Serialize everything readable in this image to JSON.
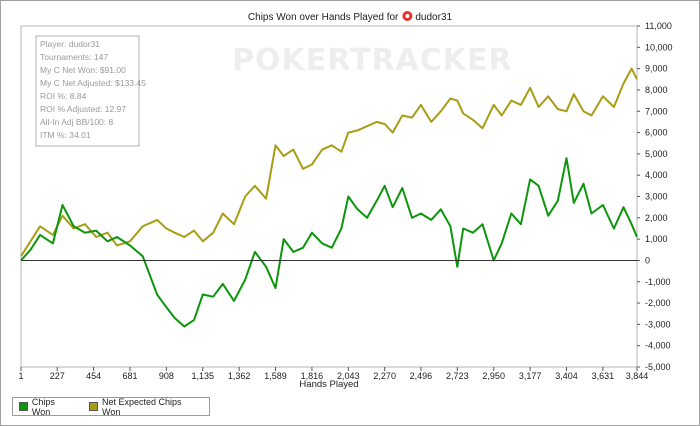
{
  "colors": {
    "chips_won": "#0c960c",
    "net_expected": "#a89d14",
    "zero_line": "#333333",
    "grid_border": "#b4b4b4",
    "app_icon": "#e8322b"
  },
  "chart_data": {
    "type": "line",
    "title": "Chips Won over Hands Played for",
    "player_name": "dudor31",
    "title_icon": "poker-chip-icon",
    "watermark": "POKERTRACKER",
    "xlabel": "Hands Played",
    "ylabel": "",
    "xlim": [
      1,
      3844
    ],
    "ylim": [
      -5000,
      11000
    ],
    "x_ticks": [
      "1",
      "227",
      "454",
      "681",
      "908",
      "1,135",
      "1,362",
      "1,589",
      "1,816",
      "2,043",
      "2,270",
      "2,496",
      "2,723",
      "2,950",
      "3,177",
      "3,404",
      "3,631",
      "3,844"
    ],
    "y_ticks": [
      "-5,000",
      "-4,000",
      "-3,000",
      "-2,000",
      "-1,000",
      "0",
      "1,000",
      "2,000",
      "3,000",
      "4,000",
      "5,000",
      "6,000",
      "7,000",
      "8,000",
      "9,000",
      "10,000",
      "11,000"
    ],
    "grid": false,
    "legend_position": "bottom-left",
    "stats_box": [
      "Player: dudor31",
      "Tournaments: 147",
      "My C Net Won: $91.00",
      "My C Net Adjusted: $133.45",
      "ROI %: 8.84",
      "ROI % Adjusted: 12.97",
      "All-In Adj BB/100: 8",
      "ITM %: 34.01"
    ],
    "series": [
      {
        "name": "Chips Won",
        "x": [
          1,
          60,
          120,
          200,
          260,
          330,
          400,
          470,
          540,
          600,
          681,
          760,
          850,
          908,
          960,
          1020,
          1080,
          1135,
          1200,
          1260,
          1330,
          1400,
          1460,
          1530,
          1589,
          1640,
          1700,
          1760,
          1816,
          1880,
          1940,
          2000,
          2043,
          2100,
          2160,
          2220,
          2270,
          2320,
          2380,
          2440,
          2496,
          2560,
          2620,
          2680,
          2723,
          2760,
          2820,
          2880,
          2950,
          3000,
          3060,
          3120,
          3177,
          3230,
          3290,
          3350,
          3404,
          3450,
          3510,
          3560,
          3631,
          3700,
          3760,
          3810,
          3844
        ],
        "values": [
          0,
          500,
          1200,
          800,
          2600,
          1600,
          1300,
          1400,
          900,
          1100,
          700,
          200,
          -1600,
          -2200,
          -2700,
          -3100,
          -2800,
          -1600,
          -1700,
          -1100,
          -1900,
          -900,
          400,
          -300,
          -1300,
          1000,
          400,
          600,
          1300,
          800,
          600,
          1500,
          3000,
          2400,
          2000,
          2800,
          3500,
          2500,
          3400,
          2000,
          2200,
          1900,
          2400,
          1600,
          -300,
          1500,
          1300,
          1700,
          0,
          800,
          2200,
          1700,
          3800,
          3500,
          2100,
          2800,
          4800,
          2700,
          3600,
          2200,
          2600,
          1500,
          2500,
          1700,
          1100
        ]
      },
      {
        "name": "Net Expected Chips Won",
        "x": [
          1,
          60,
          120,
          200,
          260,
          330,
          400,
          470,
          540,
          600,
          681,
          760,
          850,
          908,
          960,
          1020,
          1080,
          1135,
          1200,
          1260,
          1330,
          1400,
          1460,
          1530,
          1589,
          1640,
          1700,
          1760,
          1816,
          1880,
          1940,
          2000,
          2043,
          2100,
          2160,
          2220,
          2270,
          2320,
          2380,
          2440,
          2496,
          2560,
          2620,
          2680,
          2723,
          2760,
          2820,
          2880,
          2950,
          3000,
          3060,
          3120,
          3177,
          3230,
          3290,
          3350,
          3404,
          3450,
          3510,
          3560,
          3631,
          3700,
          3760,
          3810,
          3844
        ],
        "values": [
          200,
          900,
          1600,
          1200,
          2100,
          1500,
          1700,
          1100,
          1300,
          700,
          900,
          1600,
          1900,
          1500,
          1300,
          1100,
          1400,
          900,
          1300,
          2200,
          1700,
          3000,
          3500,
          2900,
          5400,
          4900,
          5200,
          4300,
          4500,
          5200,
          5400,
          5100,
          6000,
          6100,
          6300,
          6500,
          6400,
          6000,
          6800,
          6700,
          7300,
          6500,
          7000,
          7600,
          7500,
          6900,
          6600,
          6200,
          7300,
          6800,
          7500,
          7300,
          8100,
          7200,
          7700,
          7100,
          7000,
          7800,
          7000,
          6800,
          7700,
          7200,
          8300,
          9000,
          8500
        ]
      }
    ]
  }
}
